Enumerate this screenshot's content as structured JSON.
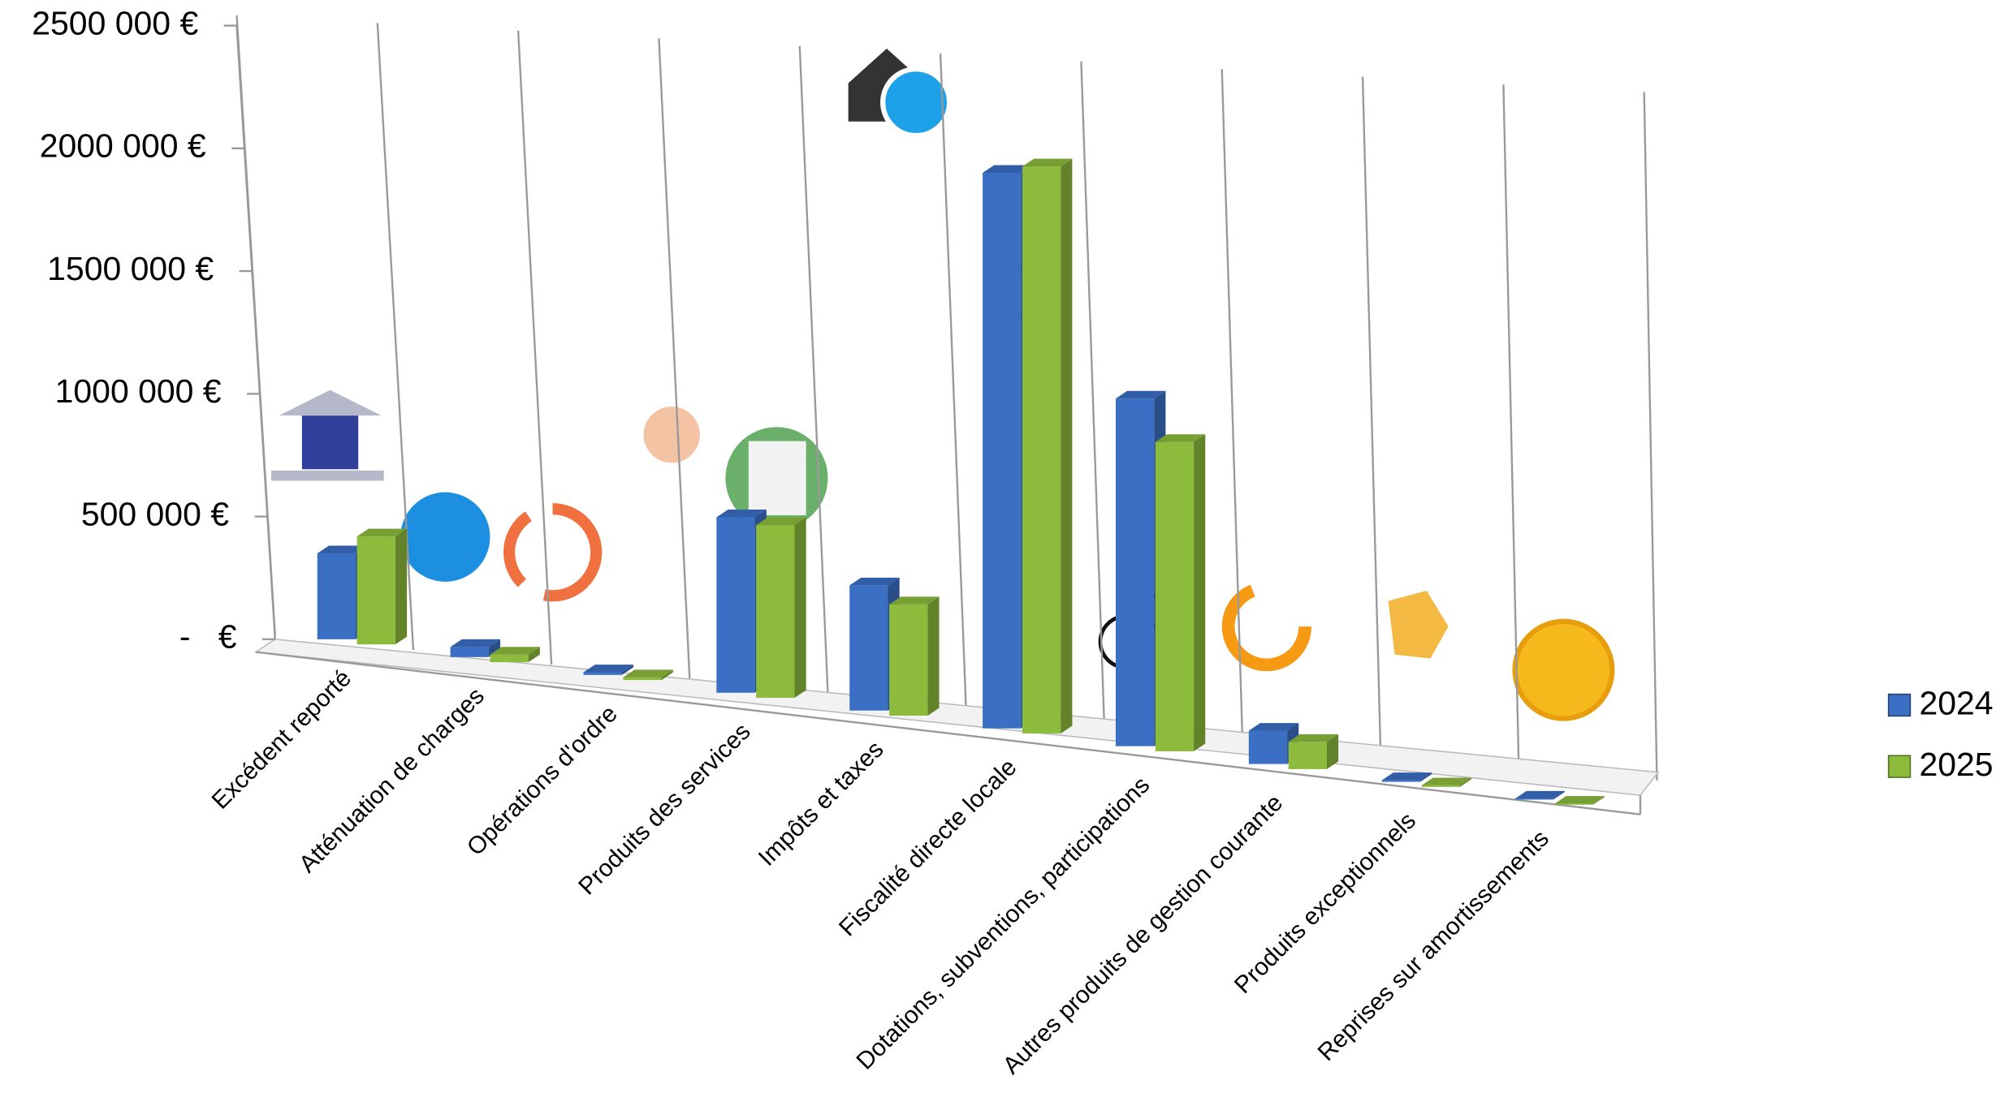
{
  "chart_data": {
    "type": "bar3d",
    "categories": [
      "Excédent reporté",
      "Atténuation de charges",
      "Opérations d'ordre",
      "Produits des services",
      "Impôts et taxes",
      "Fiscalité directe locale",
      "Dotations, subventions, participations",
      "Autres produits de gestion courante",
      "Produits exceptionnels",
      "Reprises sur amortissements"
    ],
    "series": [
      {
        "name": "2024",
        "color": "#3a6fc4",
        "values": [
          350000,
          40000,
          10000,
          650000,
          450000,
          1940000,
          1180000,
          110000,
          5000,
          3000
        ]
      },
      {
        "name": "2025",
        "color": "#8dbb3c",
        "values": [
          440000,
          30000,
          10000,
          640000,
          400000,
          1980000,
          1050000,
          90000,
          5000,
          3000
        ]
      }
    ],
    "ylim": [
      0,
      2500000
    ],
    "yticks": [
      {
        "value": 0,
        "label": "-   €"
      },
      {
        "value": 500000,
        "label": "500 000 €"
      },
      {
        "value": 1000000,
        "label": "1000 000 €"
      },
      {
        "value": 1500000,
        "label": "1500 000 €"
      },
      {
        "value": 2000000,
        "label": "2000 000 €"
      },
      {
        "value": 2500000,
        "label": "2500 000 €"
      }
    ],
    "legend": "right"
  }
}
